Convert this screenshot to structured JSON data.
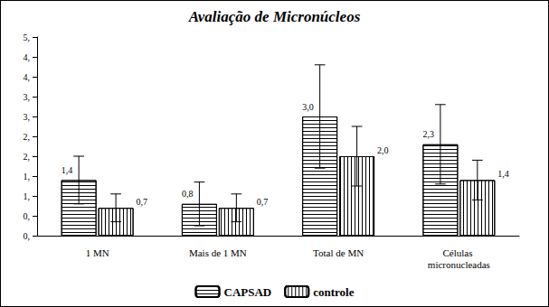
{
  "chart_data": {
    "type": "bar",
    "title": "Avaliação de Micronúcleos",
    "categories": [
      "1 MN",
      "Mais de 1 MN",
      "Total de MN",
      "Células micronucleadas"
    ],
    "series": [
      {
        "name": "CAPSAD",
        "color": "#000000",
        "values": [
          1.4,
          0.8,
          3.0,
          2.3
        ],
        "value_labels": [
          "1,4",
          "0,8",
          "3,0",
          "2,3"
        ],
        "errors": [
          0.6,
          0.55,
          1.3,
          1.0
        ]
      },
      {
        "name": "controle",
        "color": "#000000",
        "values": [
          0.7,
          0.7,
          2.0,
          1.4
        ],
        "value_labels": [
          "0,7",
          "0,7",
          "2,0",
          "1,4"
        ],
        "errors": [
          0.35,
          0.35,
          0.75,
          0.5
        ]
      }
    ],
    "ylim": [
      0,
      5
    ],
    "yticks": [
      {
        "value": 0,
        "label": "0,"
      },
      {
        "value": 0.5,
        "label": "0,"
      },
      {
        "value": 1,
        "label": "1,"
      },
      {
        "value": 1.5,
        "label": "1,"
      },
      {
        "value": 2,
        "label": "2,"
      },
      {
        "value": 2.5,
        "label": "2,"
      },
      {
        "value": 3,
        "label": "3,"
      },
      {
        "value": 3.5,
        "label": "3,"
      },
      {
        "value": 4,
        "label": "4,"
      },
      {
        "value": 4.5,
        "label": "4,"
      },
      {
        "value": 5,
        "label": "5,"
      }
    ],
    "grid": false,
    "legend": "bottom",
    "data_labels": true
  }
}
